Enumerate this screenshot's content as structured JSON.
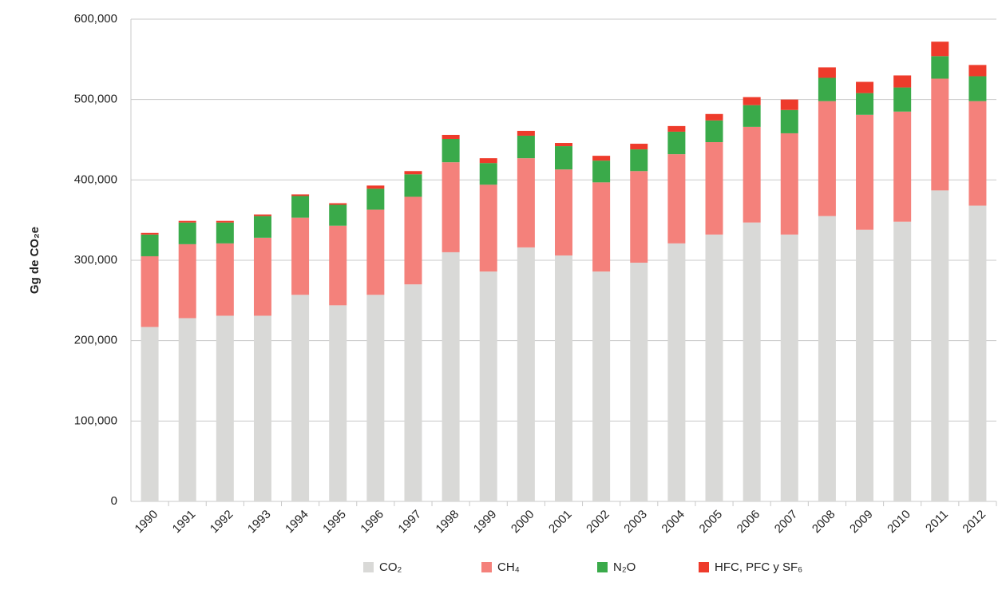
{
  "chart_data": {
    "type": "stacked_bar",
    "y_label": "Gg de CO₂e",
    "categories": [
      "1990",
      "1991",
      "1992",
      "1993",
      "1994",
      "1995",
      "1996",
      "1997",
      "1998",
      "1999",
      "2000",
      "2001",
      "2002",
      "2003",
      "2004",
      "2005",
      "2006",
      "2007",
      "2008",
      "2009",
      "2010",
      "2011",
      "2012"
    ],
    "series": [
      {
        "name": "CO₂",
        "color": "#d9d9d7",
        "values": [
          217000,
          228000,
          231000,
          231000,
          257000,
          244000,
          257000,
          270000,
          310000,
          286000,
          316000,
          306000,
          286000,
          297000,
          321000,
          332000,
          347000,
          332000,
          355000,
          338000,
          348000,
          387000,
          368000
        ]
      },
      {
        "name": "CH₄",
        "color": "#f4817b",
        "values": [
          88000,
          92000,
          90000,
          97000,
          96000,
          99000,
          106000,
          109000,
          112000,
          108000,
          111000,
          107000,
          111000,
          114000,
          111000,
          115000,
          119000,
          126000,
          143000,
          143000,
          137000,
          139000,
          130000
        ]
      },
      {
        "name": "N₂O",
        "color": "#3aaa4a",
        "values": [
          27000,
          27000,
          26000,
          27000,
          27000,
          26000,
          26000,
          28000,
          29000,
          27000,
          28000,
          29000,
          27000,
          27000,
          28000,
          27000,
          27000,
          29000,
          29000,
          27000,
          30000,
          28000,
          31000
        ]
      },
      {
        "name": "HFC, PFC y SF₆",
        "color": "#ee3b2b",
        "values": [
          2000,
          2000,
          2000,
          2000,
          2000,
          2000,
          4000,
          4000,
          5000,
          6000,
          6000,
          4000,
          6000,
          7000,
          7000,
          8000,
          10000,
          13000,
          13000,
          14000,
          15000,
          18000,
          14000
        ]
      }
    ],
    "ylim": [
      0,
      600000
    ],
    "yticks": [
      0,
      {
        "value": 100000,
        "label": "100,000"
      },
      {
        "value": 200000,
        "label": "200,000"
      },
      {
        "value": 300000,
        "label": "300,000"
      },
      {
        "value": 400000,
        "label": "400,000"
      },
      {
        "value": 500000,
        "label": "500,000"
      },
      {
        "value": 600000,
        "label": "600,000"
      }
    ],
    "grid": true,
    "legend": "bottom"
  }
}
